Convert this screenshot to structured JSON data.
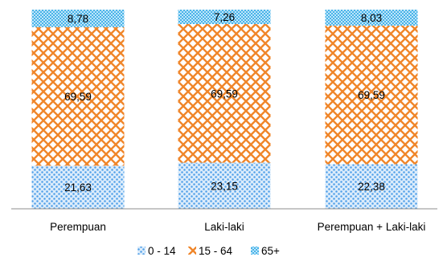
{
  "chart_data": {
    "type": "bar",
    "stacked": true,
    "percent_stacked": true,
    "categories": [
      "Perempuan",
      "Laki-laki",
      "Perempuan + Laki-laki"
    ],
    "series": [
      {
        "name": "0 - 14",
        "values": [
          21.63,
          23.15,
          22.38
        ],
        "labels": [
          "21,63",
          "23,15",
          "22,38"
        ],
        "color": "#4f9fe8",
        "pattern": "dots"
      },
      {
        "name": "15 - 64",
        "values": [
          69.59,
          69.59,
          69.59
        ],
        "labels": [
          "69,59",
          "69,59",
          "69,59"
        ],
        "color": "#f0862a",
        "pattern": "diagonal-cross"
      },
      {
        "name": "65+",
        "values": [
          8.78,
          7.26,
          8.03
        ],
        "labels": [
          "8,78",
          "7,26",
          "8,03"
        ],
        "color": "#4fb6e8",
        "pattern": "checker"
      }
    ],
    "title": "",
    "xlabel": "",
    "ylabel": "",
    "ylim": [
      0,
      100
    ],
    "grid": false,
    "legend": "bottom",
    "axis_color": "#8c8c8c"
  }
}
